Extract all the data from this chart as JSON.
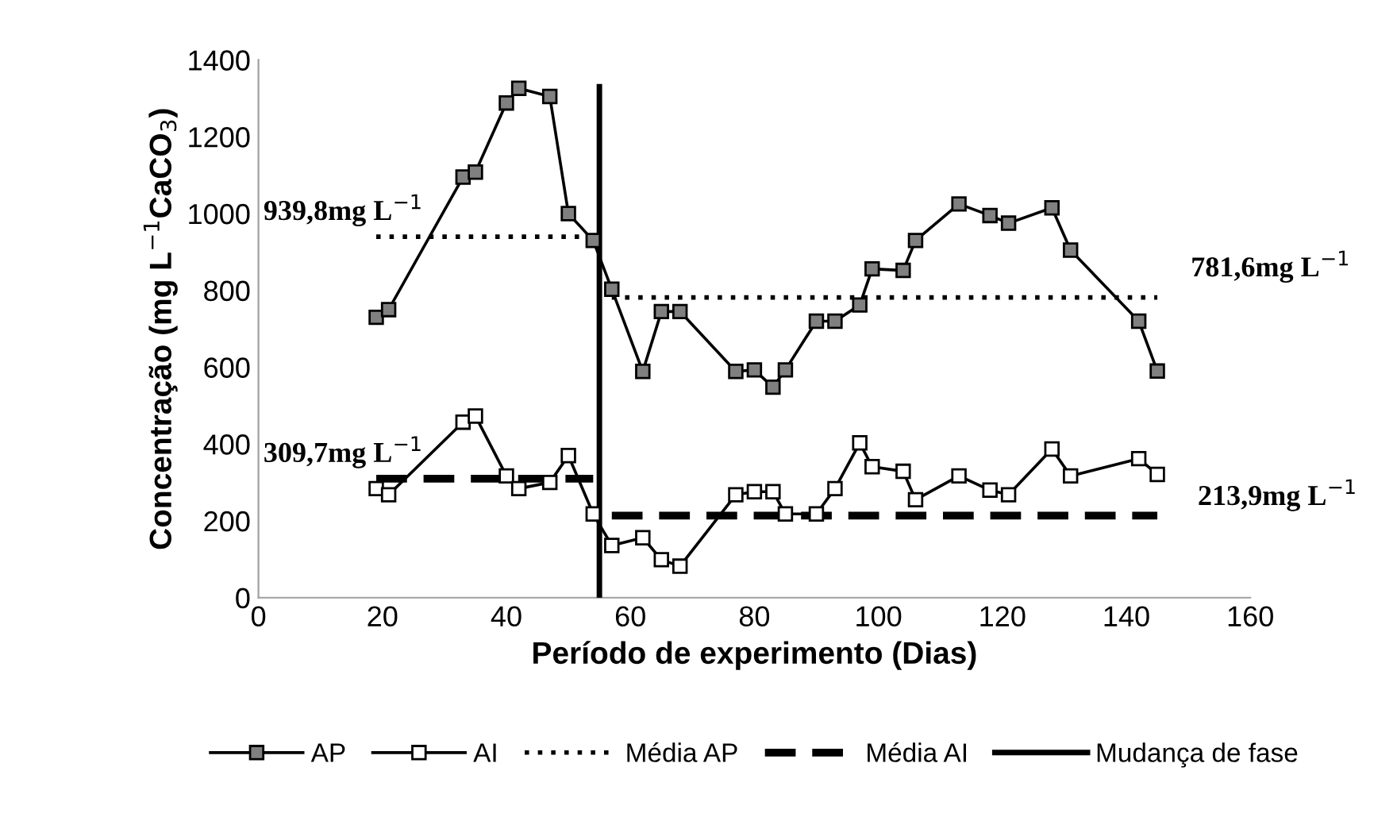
{
  "chart_data": {
    "type": "line",
    "xlabel": "Período de experimento (Dias)",
    "ylabel": "Concentração (mg L$^{−1}$CaCO$_{3}$)",
    "xlim": [
      0,
      160
    ],
    "xticks": [
      0,
      20,
      40,
      60,
      80,
      100,
      120,
      140,
      160
    ],
    "ylim": [
      0,
      1400
    ],
    "yticks": [
      0,
      200,
      400,
      600,
      800,
      1000,
      1200,
      1400
    ],
    "grid": false,
    "legend": "bottom",
    "series": [
      {
        "name": "AP",
        "color": "#808080",
        "marker": "square",
        "line_style": "solid",
        "x": [
          19,
          21,
          33,
          35,
          40,
          42,
          47,
          50,
          54,
          57,
          62,
          65,
          68,
          77,
          80,
          83,
          85,
          90,
          93,
          97,
          99,
          104,
          106,
          113,
          118,
          121,
          128,
          131,
          142,
          145
        ],
        "values": [
          730,
          750,
          1095,
          1108,
          1288,
          1326,
          1305,
          1000,
          930,
          803,
          589,
          745,
          745,
          589,
          593,
          548,
          593,
          720,
          720,
          762,
          856,
          852,
          930,
          1025,
          995,
          975,
          1015,
          905,
          720,
          590
        ]
      },
      {
        "name": "AI",
        "color": "#ffffff",
        "marker": "square",
        "line_style": "solid",
        "x": [
          19,
          21,
          33,
          35,
          40,
          42,
          47,
          50,
          54,
          57,
          62,
          65,
          68,
          77,
          80,
          83,
          85,
          90,
          93,
          97,
          99,
          104,
          106,
          113,
          118,
          121,
          128,
          131,
          142,
          145
        ],
        "values": [
          284,
          268,
          457,
          473,
          317,
          284,
          300,
          370,
          218,
          136,
          156,
          99,
          82,
          268,
          276,
          276,
          218,
          218,
          284,
          403,
          341,
          329,
          255,
          317,
          280,
          268,
          387,
          317,
          362,
          321
        ]
      },
      {
        "name": "Média AP",
        "color": "#000000",
        "marker": "none",
        "line_style": "dotted",
        "x": [
          19,
          54,
          null,
          57,
          145
        ],
        "values": [
          939.8,
          939.8,
          null,
          781.6,
          781.6
        ]
      },
      {
        "name": "Média AI",
        "color": "#000000",
        "marker": "none",
        "line_style": "dashed",
        "x": [
          19,
          54,
          null,
          57,
          145
        ],
        "values": [
          309.7,
          309.7,
          null,
          213.9,
          213.9
        ]
      },
      {
        "name": "Mudança de fase",
        "color": "#000000",
        "marker": "none",
        "line_style": "solid",
        "x": [
          55,
          55
        ],
        "values": [
          0,
          1330
        ]
      }
    ],
    "annotations": [
      "939,8mg L$^{−1}$",
      "309,7mg L$^{−1}$",
      "781,6mg L$^{−1}$",
      "213,9mg L$^{−1}$"
    ]
  }
}
